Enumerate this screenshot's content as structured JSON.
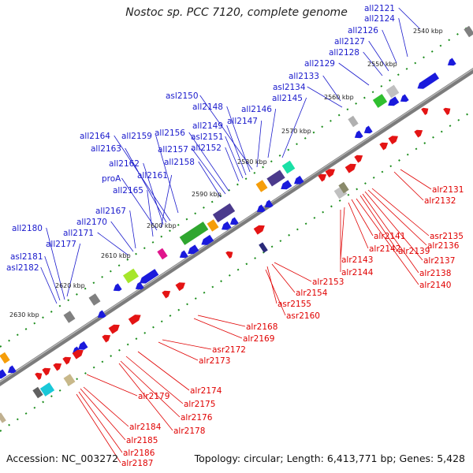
{
  "header": {
    "title": "Nostoc sp. PCC 7120, complete genome"
  },
  "footer": {
    "accession": "Accession: NC_003272",
    "summary": "Topology: circular; Length: 6,413,771 bp; Genes: 5,428"
  },
  "colors": {
    "minus_label": "#1a1acc",
    "plus_label": "#e00000",
    "ticks": "#1a8c1a",
    "backbone": "#808080"
  },
  "kbp_ticks": [
    "2540 kbp",
    "2550 kbp",
    "2560 kbp",
    "2570 kbp",
    "2580 kbp",
    "2590 kbp",
    "2600 kbp",
    "2610 kbp",
    "2620 kbp",
    "2630 kbp"
  ],
  "minus_genes": [
    "all2121",
    "all2124",
    "all2126",
    "all2127",
    "all2128",
    "all2129",
    "all2133",
    "asl2134",
    "all2145",
    "all2146",
    "all2147",
    "asl2150",
    "all2148",
    "all2149",
    "asl2151",
    "all2152",
    "all2156",
    "all2157",
    "all2158",
    "all2159",
    "all2164",
    "all2163",
    "all2162",
    "all2161",
    "proA",
    "all2165",
    "all2167",
    "all2170",
    "all2171",
    "all2180",
    "all2177",
    "asl2181",
    "asl2182"
  ],
  "plus_genes": [
    "alr2131",
    "alr2132",
    "asr2135",
    "alr2136",
    "alr2137",
    "alr2138",
    "alr2139",
    "alr2140",
    "alr2141",
    "alr2142",
    "alr2143",
    "alr2144",
    "alr2153",
    "alr2154",
    "asr2155",
    "asr2160",
    "alr2168",
    "alr2169",
    "asr2172",
    "alr2173",
    "alr2174",
    "alr2175",
    "alr2176",
    "alr2178",
    "alr2179",
    "alr2184",
    "alr2185",
    "alr2186",
    "alr2187"
  ]
}
